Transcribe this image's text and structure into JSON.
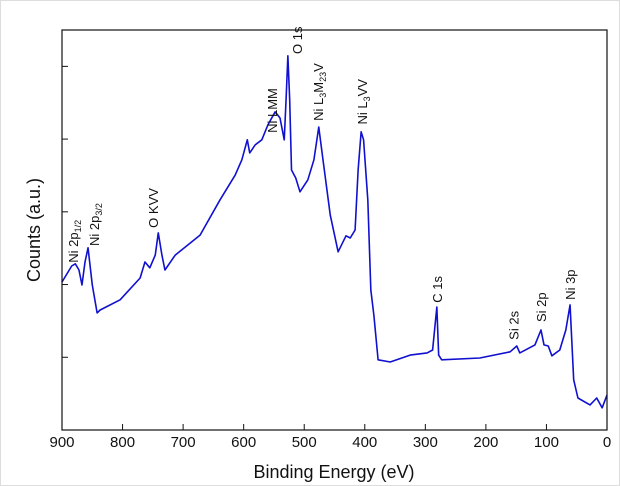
{
  "chart_data": {
    "type": "line",
    "xlabel": "Binding Energy (eV)",
    "ylabel": "Counts (a.u.)",
    "xlim": [
      900,
      0
    ],
    "xticks": [
      900,
      800,
      700,
      600,
      500,
      400,
      300,
      200,
      100,
      0
    ],
    "ylim": [
      0,
      110
    ],
    "yticks": [
      0,
      20,
      40,
      60,
      80,
      100
    ],
    "series": [
      {
        "color": "#1010d0",
        "x": [
          900,
          884,
          878,
          872,
          867,
          862,
          857,
          850,
          842,
          837,
          804,
          771,
          763,
          755,
          746,
          741,
          735,
          730,
          713,
          672,
          639,
          614,
          603,
          594,
          590,
          581,
          570,
          560,
          548,
          540,
          533,
          530,
          527,
          524,
          521,
          514,
          507,
          494,
          484,
          476,
          469,
          457,
          444,
          431,
          424,
          416,
          411,
          406,
          402,
          395,
          390,
          385,
          378,
          358,
          325,
          297,
          288,
          281,
          278,
          273,
          210,
          160,
          149,
          144,
          119,
          109,
          104,
          97,
          91,
          78,
          68,
          61,
          55,
          48,
          28,
          17,
          8,
          0
        ],
        "values": [
          40.7,
          45.1,
          45.7,
          44.0,
          39.9,
          46.2,
          50.1,
          39.9,
          32.2,
          33.0,
          35.8,
          41.8,
          46.2,
          44.6,
          48.1,
          54.2,
          48.1,
          44.0,
          48.1,
          53.6,
          63.3,
          70.1,
          74.3,
          79.8,
          76.2,
          78.4,
          79.8,
          83.9,
          87.5,
          85.8,
          79.8,
          90.8,
          102.9,
          90.8,
          71.5,
          69.3,
          65.5,
          68.8,
          74.3,
          83.3,
          74.3,
          59.1,
          49.0,
          53.4,
          52.8,
          55.0,
          71.5,
          82.0,
          79.8,
          63.3,
          38.5,
          31.6,
          19.3,
          18.7,
          20.6,
          21.2,
          22.0,
          33.8,
          20.6,
          19.3,
          19.8,
          21.5,
          23.1,
          21.2,
          23.4,
          27.5,
          23.4,
          23.1,
          20.4,
          22.0,
          27.5,
          34.4,
          13.8,
          8.8,
          6.9,
          8.8,
          6.1,
          9.6
        ]
      }
    ],
    "annotations": [
      {
        "x": 882,
        "y": 46,
        "label": [
          {
            "text": "Ni 2p"
          },
          {
            "sub": "1/2"
          }
        ]
      },
      {
        "x": 847,
        "y": 50.6,
        "label": [
          {
            "text": "Ni 2p"
          },
          {
            "sub": "3/2"
          }
        ]
      },
      {
        "x": 750,
        "y": 55.6,
        "label": [
          {
            "text": "O KVV"
          }
        ]
      },
      {
        "x": 553,
        "y": 81.7,
        "label": [
          {
            "text": "Ni LMM"
          }
        ]
      },
      {
        "x": 512,
        "y": 103.4,
        "label": [
          {
            "text": "O 1s"
          }
        ]
      },
      {
        "x": 477,
        "y": 85,
        "label": [
          {
            "text": "Ni L"
          },
          {
            "sub": "3"
          },
          {
            "text": "M"
          },
          {
            "sub": "23"
          },
          {
            "text": "V"
          }
        ]
      },
      {
        "x": 405,
        "y": 84,
        "label": [
          {
            "text": "Ni L"
          },
          {
            "sub": "3"
          },
          {
            "text": "VV"
          }
        ]
      },
      {
        "x": 281,
        "y": 35,
        "label": [
          {
            "text": "C 1s"
          }
        ]
      },
      {
        "x": 154,
        "y": 24.8,
        "label": [
          {
            "text": "Si 2s"
          }
        ]
      },
      {
        "x": 109,
        "y": 29.7,
        "label": [
          {
            "text": "Si 2p"
          }
        ]
      },
      {
        "x": 61,
        "y": 35.8,
        "label": [
          {
            "text": "Ni 3p"
          }
        ]
      }
    ]
  }
}
